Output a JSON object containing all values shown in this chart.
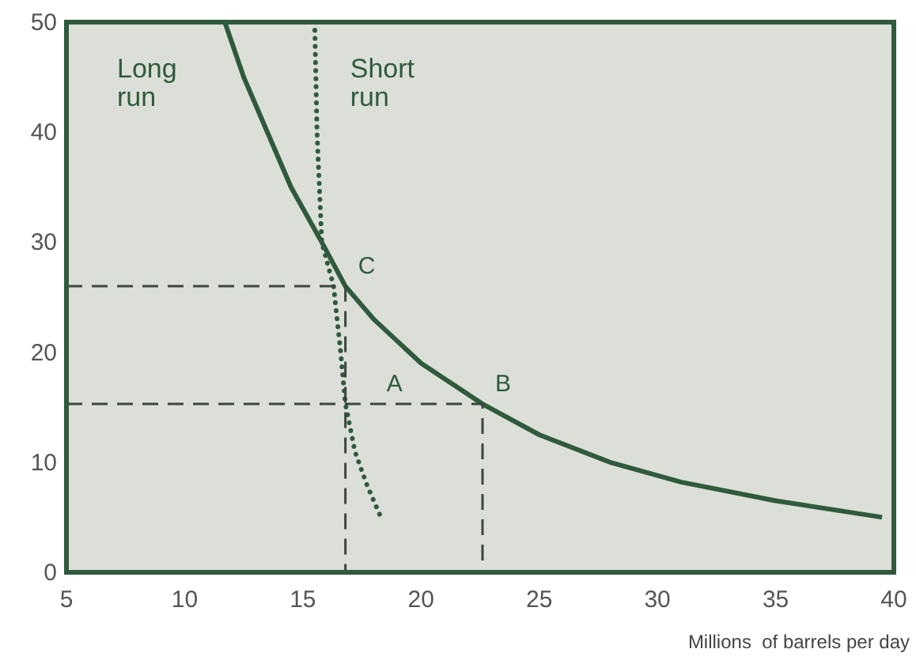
{
  "chart_data": {
    "type": "line",
    "xlabel": "Millions  of barrels per day",
    "xlim": [
      5,
      40
    ],
    "ylim": [
      0,
      50
    ],
    "xticks": [
      5,
      10,
      15,
      20,
      25,
      30,
      35,
      40
    ],
    "yticks": [
      0,
      10,
      20,
      30,
      40,
      50
    ],
    "grid": false,
    "marker": "none",
    "series": [
      {
        "name": "Long run",
        "color": "#2f5a3c",
        "line_style": "solid",
        "x": [
          11.7,
          12.5,
          13.5,
          14.5,
          15.8,
          16.8,
          18,
          20,
          22.6,
          25,
          28,
          31,
          35,
          39.5
        ],
        "values": [
          50,
          45,
          40,
          35,
          30,
          26,
          23,
          19,
          15.3,
          12.5,
          10,
          8.2,
          6.5,
          5
        ],
        "value_labels": [
          null,
          null,
          null,
          null,
          null,
          "C",
          null,
          null,
          "B",
          null,
          null,
          null,
          null,
          null
        ]
      },
      {
        "name": "Short run",
        "color": "#2f5a3c",
        "line_style": "dotted",
        "x": [
          15.5,
          15.6,
          15.8,
          16.3,
          16.6,
          16.8,
          17.2,
          17.7,
          18.3
        ],
        "values": [
          50,
          40,
          30,
          26,
          20,
          15.3,
          11,
          8,
          5
        ],
        "value_labels": [
          null,
          null,
          null,
          null,
          null,
          "A",
          null,
          null,
          null
        ]
      },
      {
        "color": "#3b463d",
        "line_style": "dashed",
        "x": [
          5,
          16.8,
          16.8
        ],
        "values": [
          26,
          26,
          0
        ]
      },
      {
        "color": "#3b463d",
        "line_style": "dashed",
        "x": [
          5,
          22.6,
          22.6
        ],
        "values": [
          15.3,
          15.3,
          0
        ]
      }
    ]
  }
}
